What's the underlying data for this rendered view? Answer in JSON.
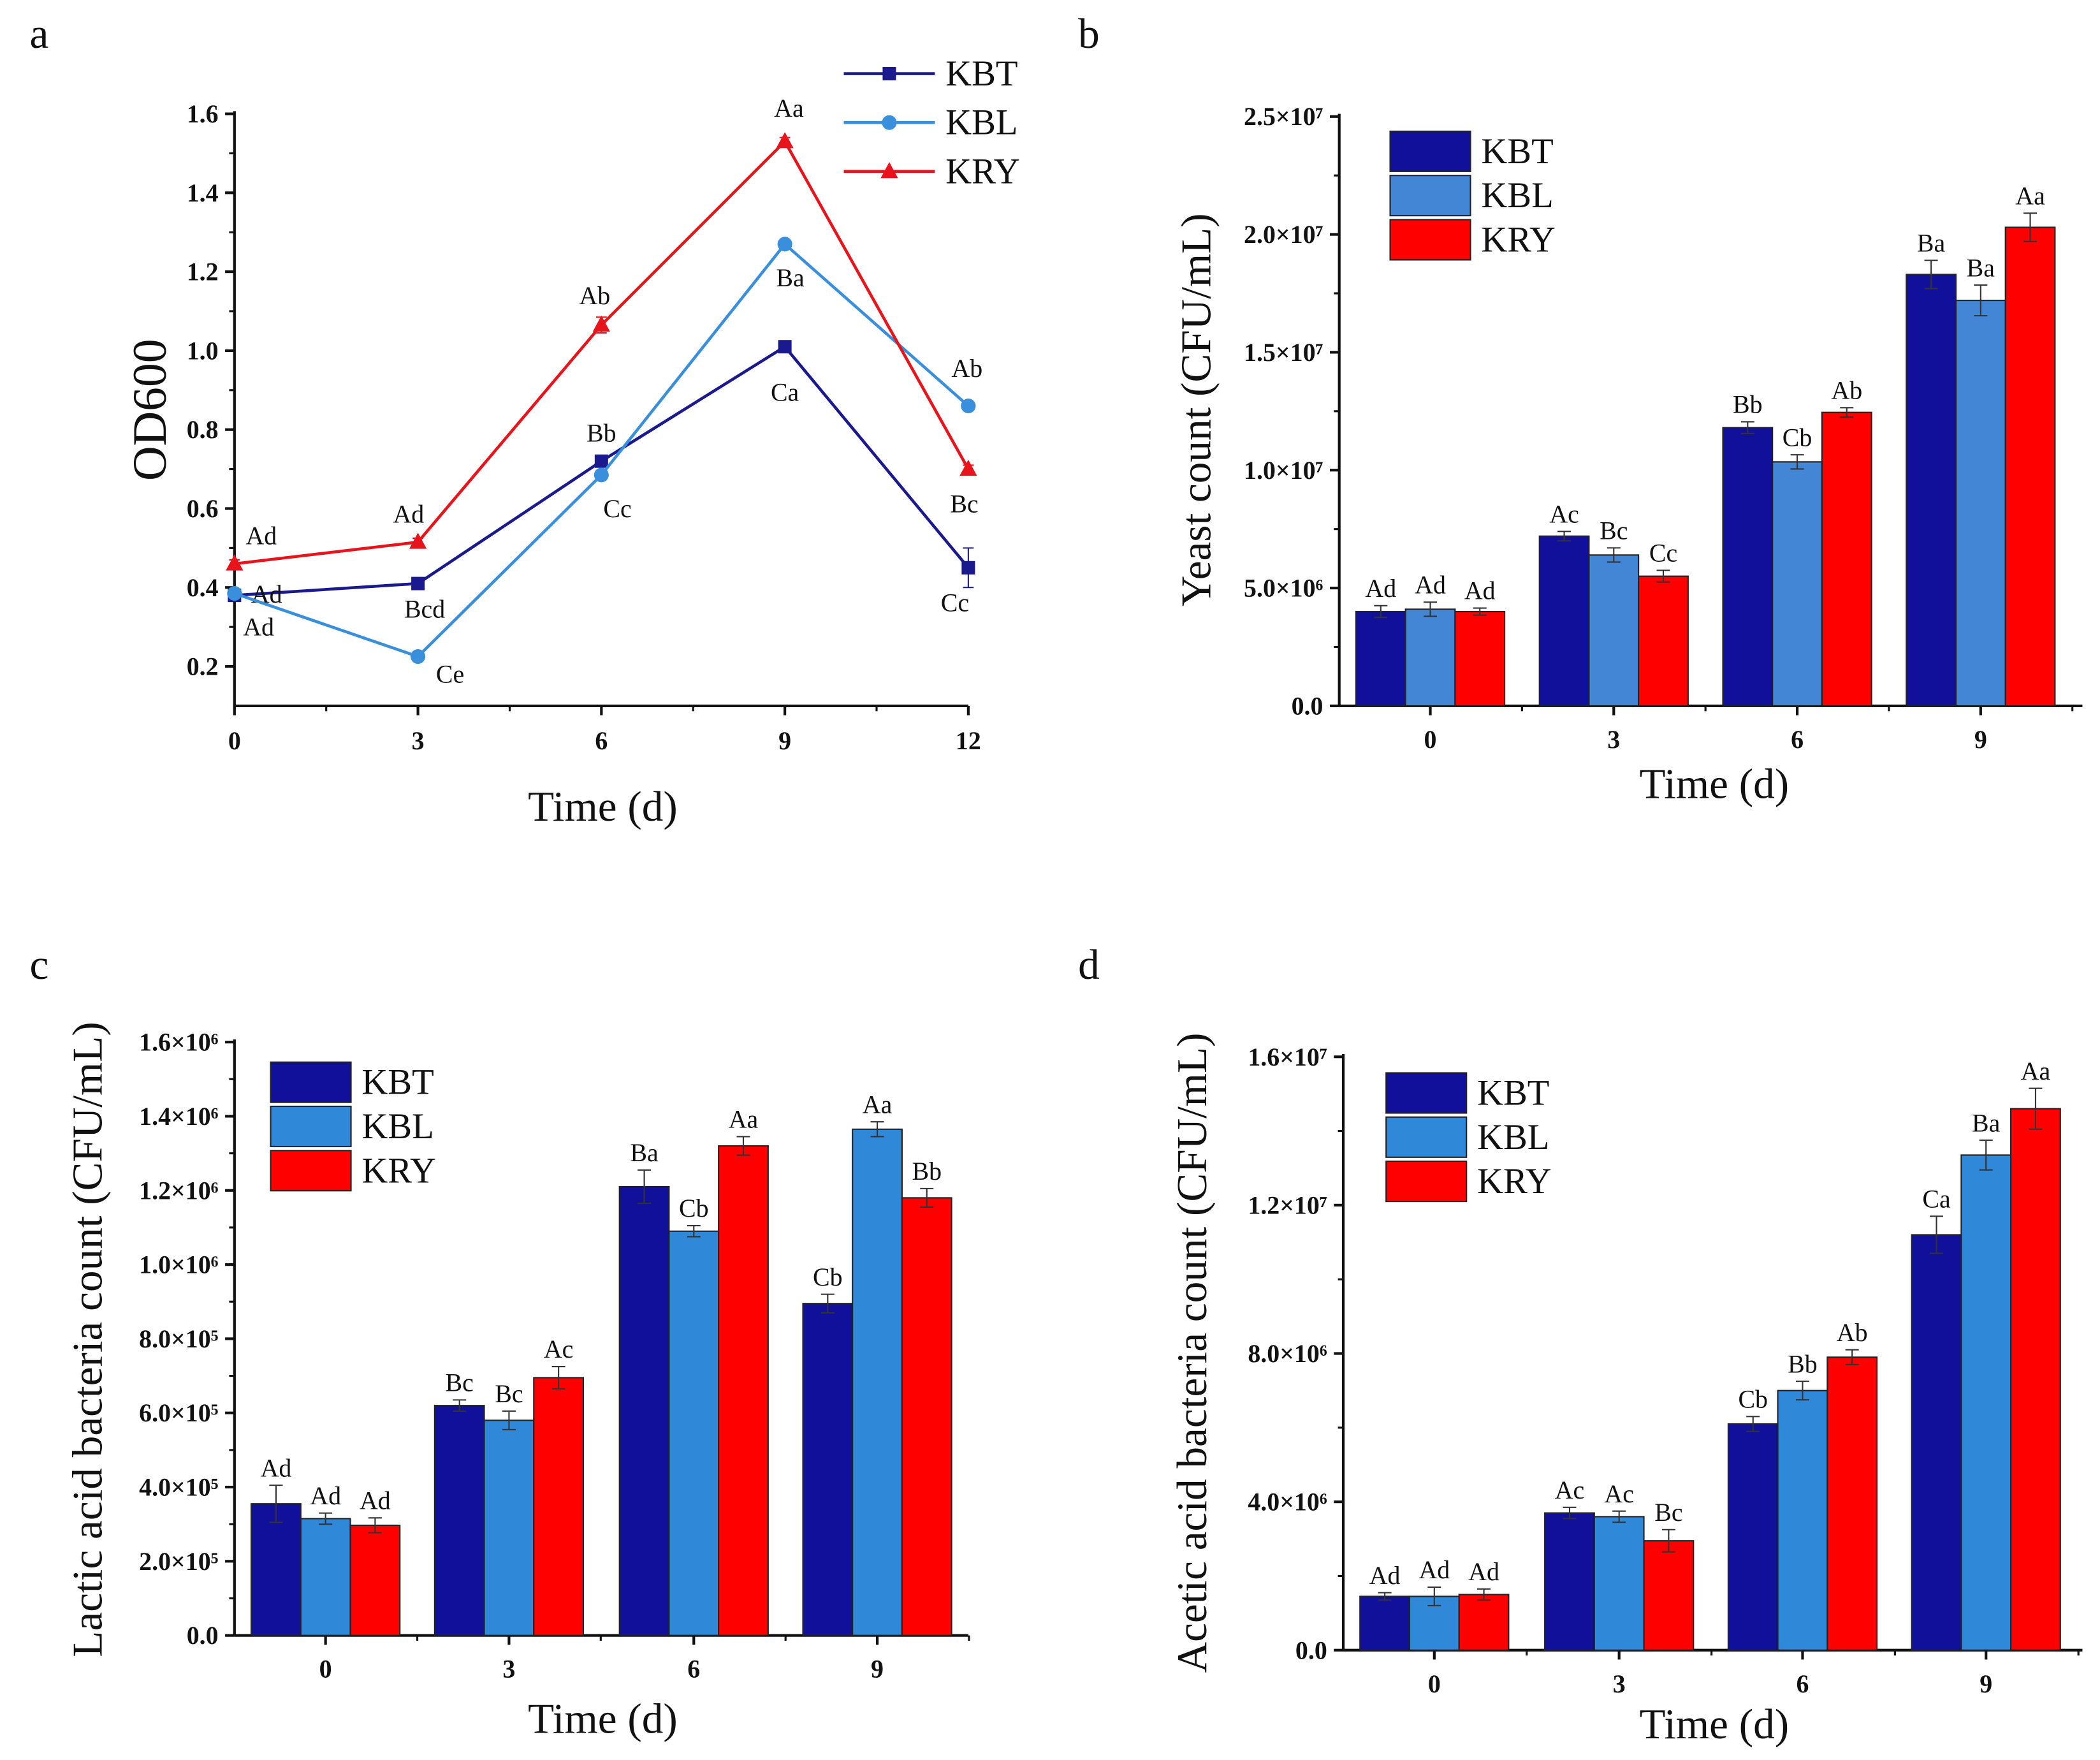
{
  "chart_data": [
    {
      "panel": "a",
      "type": "line",
      "xlabel": "Time (d)",
      "ylabel": "OD600",
      "x": [
        0,
        3,
        6,
        9,
        12
      ],
      "xticks": [
        "0",
        "3",
        "6",
        "9",
        "12"
      ],
      "yticks": [
        "0.2",
        "0.4",
        "0.6",
        "0.8",
        "1.0",
        "1.2",
        "1.4",
        "1.6"
      ],
      "ylim": [
        0.1,
        1.6
      ],
      "xlim": [
        0,
        12
      ],
      "legend": "top-right",
      "series": [
        {
          "name": "KBT",
          "color": "#1a1a8e",
          "marker": "square",
          "values": [
            0.38,
            0.41,
            0.72,
            1.01,
            0.45
          ],
          "errors": [
            0.01,
            0.01,
            0.01,
            0.01,
            0.05
          ],
          "labels": [
            "Ad",
            "Bcd",
            "Bb",
            "Ca",
            "Cc"
          ]
        },
        {
          "name": "KBL",
          "color": "#3a8fdc",
          "marker": "circle",
          "values": [
            0.385,
            0.225,
            0.685,
            1.27,
            0.86
          ],
          "errors": [
            0.01,
            0.01,
            0.01,
            0.01,
            0.01
          ],
          "labels": [
            "Ad",
            "Ce",
            "Cc",
            "Ba",
            "Ab"
          ]
        },
        {
          "name": "KRY",
          "color": "#e8141c",
          "marker": "triangle",
          "values": [
            0.46,
            0.515,
            1.065,
            1.53,
            0.7
          ],
          "errors": [
            0.01,
            0.01,
            0.02,
            0.01,
            0.01
          ],
          "labels": [
            "Ad",
            "Ad",
            "Ab",
            "Aa",
            "Bc"
          ]
        }
      ]
    },
    {
      "panel": "b",
      "type": "bar",
      "xlabel": "Time (d)",
      "ylabel": "Yeast count (CFU/mL)",
      "categories": [
        "0",
        "3",
        "6",
        "9"
      ],
      "yticks": [
        "0.0",
        "5.0×10⁶",
        "1.0×10⁷",
        "1.5×10⁷",
        "2.0×10⁷",
        "2.5×10⁷"
      ],
      "ylim": [
        0,
        25000000
      ],
      "legend": "top-left",
      "series": [
        {
          "name": "KBT",
          "color": "#10109a",
          "values": [
            4000000,
            7200000,
            11800000,
            18300000
          ],
          "errors": [
            250000,
            200000,
            250000,
            600000
          ],
          "labels": [
            "Ad",
            "Ac",
            "Bb",
            "Ba"
          ]
        },
        {
          "name": "KBL",
          "color": "#4486d6",
          "values": [
            4100000,
            6400000,
            10350000,
            17200000
          ],
          "errors": [
            300000,
            300000,
            300000,
            650000
          ],
          "labels": [
            "Ad",
            "Bc",
            "Cb",
            "Ba"
          ]
        },
        {
          "name": "KRY",
          "color": "#ff0000",
          "values": [
            4000000,
            5500000,
            12450000,
            20300000
          ],
          "errors": [
            150000,
            250000,
            200000,
            600000
          ],
          "labels": [
            "Ad",
            "Cc",
            "Ab",
            "Aa"
          ]
        }
      ]
    },
    {
      "panel": "c",
      "type": "bar",
      "xlabel": "Time (d)",
      "ylabel": "Lactic acid bacteria count (CFU/mL)",
      "categories": [
        "0",
        "3",
        "6",
        "9"
      ],
      "yticks": [
        "0.0",
        "2.0×10⁵",
        "4.0×10⁵",
        "6.0×10⁵",
        "8.0×10⁵",
        "1.0×10⁶",
        "1.2×10⁶",
        "1.4×10⁶",
        "1.6×10⁶"
      ],
      "ylim": [
        0,
        1600000
      ],
      "legend": "top-left",
      "series": [
        {
          "name": "KBT",
          "color": "#10109a",
          "values": [
            355000,
            620000,
            1210000,
            895000
          ],
          "errors": [
            50000,
            15000,
            45000,
            25000
          ],
          "labels": [
            "Ad",
            "Bc",
            "Ba",
            "Cb"
          ]
        },
        {
          "name": "KBL",
          "color": "#2f88d8",
          "values": [
            315000,
            580000,
            1090000,
            1365000
          ],
          "errors": [
            15000,
            25000,
            15000,
            20000
          ],
          "labels": [
            "Ad",
            "Bc",
            "Cb",
            "Aa"
          ]
        },
        {
          "name": "KRY",
          "color": "#ff0000",
          "values": [
            297000,
            695000,
            1320000,
            1180000
          ],
          "errors": [
            20000,
            30000,
            25000,
            25000
          ],
          "labels": [
            "Ad",
            "Ac",
            "Aa",
            "Bb"
          ]
        }
      ]
    },
    {
      "panel": "d",
      "type": "bar",
      "xlabel": "Time (d)",
      "ylabel": "Acetic acid bacteria count (CFU/mL)",
      "categories": [
        "0",
        "3",
        "6",
        "9"
      ],
      "yticks": [
        "0.0",
        "4.0×10⁶",
        "8.0×10⁶",
        "1.2×10⁷",
        "1.6×10⁷"
      ],
      "ylim": [
        0,
        16000000
      ],
      "legend": "top-left",
      "series": [
        {
          "name": "KBT",
          "color": "#10109a",
          "values": [
            1450000,
            3700000,
            6100000,
            11200000
          ],
          "errors": [
            100000,
            150000,
            200000,
            500000
          ],
          "labels": [
            "Ad",
            "Ac",
            "Cb",
            "Ca"
          ]
        },
        {
          "name": "KBL",
          "color": "#2f88d8",
          "values": [
            1450000,
            3600000,
            7000000,
            13350000
          ],
          "errors": [
            250000,
            150000,
            250000,
            400000
          ],
          "labels": [
            "Ad",
            "Ac",
            "Bb",
            "Ba"
          ]
        },
        {
          "name": "KRY",
          "color": "#ff0000",
          "values": [
            1500000,
            2950000,
            7900000,
            14600000
          ],
          "errors": [
            150000,
            300000,
            200000,
            550000
          ],
          "labels": [
            "Ad",
            "Bc",
            "Ab",
            "Aa"
          ]
        }
      ]
    }
  ]
}
